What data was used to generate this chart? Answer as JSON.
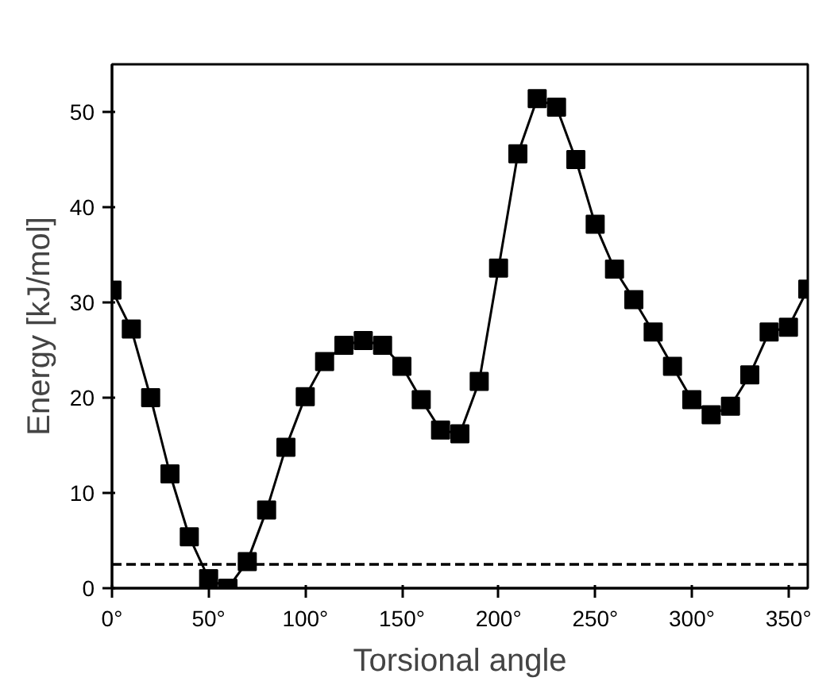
{
  "chart_data": {
    "type": "line",
    "xlabel": "Torsional angle",
    "ylabel": "Energy [kJ/mol]",
    "x": [
      0,
      10,
      20,
      30,
      40,
      50,
      60,
      70,
      80,
      90,
      100,
      110,
      120,
      130,
      140,
      150,
      160,
      170,
      180,
      190,
      200,
      210,
      220,
      230,
      240,
      250,
      260,
      270,
      280,
      290,
      300,
      310,
      320,
      330,
      340,
      350,
      360
    ],
    "series": [
      {
        "color": "#000000",
        "values": [
          31.3,
          27.2,
          20,
          12,
          5.4,
          1,
          0,
          2.8,
          8.2,
          14.8,
          20.1,
          23.8,
          25.5,
          26,
          25.5,
          23.3,
          19.8,
          16.6,
          16.2,
          21.7,
          33.6,
          45.6,
          51.4,
          50.5,
          45,
          38.2,
          33.5,
          30.3,
          26.9,
          23.3,
          19.8,
          18.2,
          19.1,
          22.4,
          26.9,
          27.4,
          31.4
        ]
      }
    ],
    "marker": "square",
    "line_style": "solid",
    "xlim": [
      0,
      360
    ],
    "ylim": [
      0,
      55
    ],
    "xticks": [
      {
        "value": 0,
        "label": "0°"
      },
      {
        "value": 50,
        "label": "50°"
      },
      {
        "value": 100,
        "label": "100°"
      },
      {
        "value": 150,
        "label": "150°"
      },
      {
        "value": 200,
        "label": "200°"
      },
      {
        "value": 250,
        "label": "250°"
      },
      {
        "value": 300,
        "label": "300°"
      },
      {
        "value": 350,
        "label": "350°"
      }
    ],
    "yticks": [
      0,
      10,
      20,
      30,
      40,
      50
    ],
    "ref_lines": [
      {
        "axis": "y",
        "value": 2.5,
        "color": "#000000",
        "line_style": "dashed"
      }
    ],
    "grid": false
  }
}
